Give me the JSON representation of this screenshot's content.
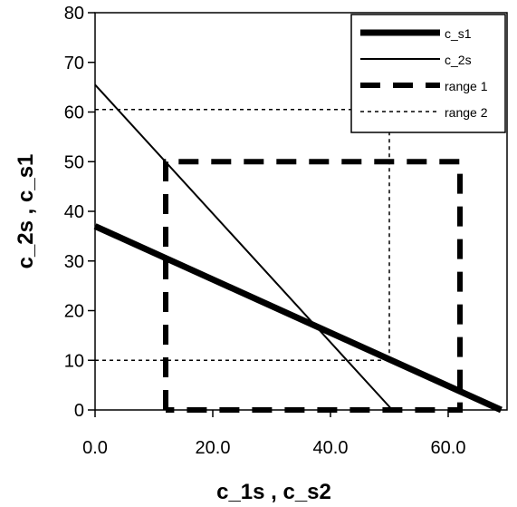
{
  "chart_data": {
    "type": "line",
    "xlabel": "c_1s , c_s2",
    "ylabel": "c_2s , c_s1",
    "xlim": [
      0,
      70
    ],
    "ylim": [
      0,
      80
    ],
    "x_ticks": [
      0,
      20,
      40,
      60
    ],
    "x_tick_labels": [
      "0.0",
      "20.0",
      "40.0",
      "60.0"
    ],
    "y_ticks": [
      0,
      10,
      20,
      30,
      40,
      50,
      60,
      70,
      80
    ],
    "y_tick_labels": [
      "0",
      "10",
      "20",
      "30",
      "40",
      "50",
      "60",
      "70",
      "80"
    ],
    "grid": false,
    "legend_position": "top-right",
    "series": [
      {
        "name": "c_s1",
        "style": "thick-solid",
        "x": [
          0,
          69
        ],
        "y": [
          37,
          0
        ]
      },
      {
        "name": "c_2s",
        "style": "thin-solid",
        "x": [
          0,
          50.5
        ],
        "y": [
          65.5,
          0
        ]
      },
      {
        "name": "range 1",
        "style": "thick-dashed",
        "x": [
          12,
          12,
          62,
          62,
          12
        ],
        "y": [
          0,
          50,
          50,
          0,
          0
        ]
      },
      {
        "name": "range 2",
        "style": "thin-dotted",
        "segments": [
          {
            "x": [
              0,
              50
            ],
            "y": [
              60.5,
              60.5
            ]
          },
          {
            "x": [
              0,
              50
            ],
            "y": [
              10,
              10
            ]
          },
          {
            "x": [
              50,
              50
            ],
            "y": [
              10,
              60.5
            ]
          }
        ]
      }
    ],
    "colors": {
      "lines": "#000000",
      "background": "#ffffff"
    }
  }
}
